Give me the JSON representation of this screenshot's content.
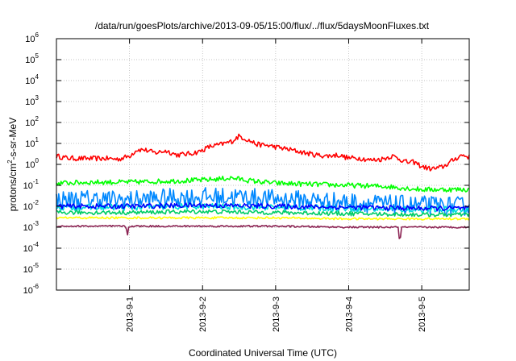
{
  "chart_data": {
    "type": "line",
    "title": "/data/run/goesPlots/archive/2013-09-05/15:00/flux/../flux/5daysMoonFluxes.txt",
    "xlabel": "Coordinated Universal Time (UTC)",
    "ylabel_prefix": "protons/cm",
    "ylabel_sup": "2",
    "ylabel_suffix": "-s-sr-MeV",
    "yscale": "log",
    "ylim": [
      1e-06,
      1000000.0
    ],
    "xlim_days": [
      0,
      5.65
    ],
    "grid": true,
    "y_ticks": [
      {
        "base": "10",
        "exp": "-6",
        "value": -6
      },
      {
        "base": "10",
        "exp": "-5",
        "value": -5
      },
      {
        "base": "10",
        "exp": "-4",
        "value": -4
      },
      {
        "base": "10",
        "exp": "-3",
        "value": -3
      },
      {
        "base": "10",
        "exp": "-2",
        "value": -2
      },
      {
        "base": "10",
        "exp": "-1",
        "value": -1
      },
      {
        "base": "10",
        "exp": "0",
        "value": 0
      },
      {
        "base": "10",
        "exp": "1",
        "value": 1
      },
      {
        "base": "10",
        "exp": "2",
        "value": 2
      },
      {
        "base": "10",
        "exp": "3",
        "value": 3
      },
      {
        "base": "10",
        "exp": "4",
        "value": 4
      },
      {
        "base": "10",
        "exp": "5",
        "value": 5
      },
      {
        "base": "10",
        "exp": "6",
        "value": 6
      }
    ],
    "x_ticks": [
      {
        "label": "2013-9-1",
        "day": 1
      },
      {
        "label": "2013-9-2",
        "day": 2
      },
      {
        "label": "2013-9-3",
        "day": 3
      },
      {
        "label": "2013-9-4",
        "day": 4
      },
      {
        "label": "2013-9-5",
        "day": 5
      }
    ],
    "series": [
      {
        "color": "#ff0000",
        "points": [
          [
            0,
            0.4
          ],
          [
            0.15,
            0.3
          ],
          [
            0.3,
            0.28
          ],
          [
            0.5,
            0.28
          ],
          [
            0.7,
            0.28
          ],
          [
            0.85,
            0.25
          ],
          [
            1.0,
            0.4
          ],
          [
            1.1,
            0.7
          ],
          [
            1.2,
            0.7
          ],
          [
            1.35,
            0.55
          ],
          [
            1.5,
            0.65
          ],
          [
            1.65,
            0.45
          ],
          [
            1.8,
            0.5
          ],
          [
            1.95,
            0.6
          ],
          [
            2.1,
            0.85
          ],
          [
            2.25,
            0.95
          ],
          [
            2.4,
            1.1
          ],
          [
            2.5,
            1.35
          ],
          [
            2.6,
            1.2
          ],
          [
            2.75,
            0.95
          ],
          [
            2.9,
            0.9
          ],
          [
            3.05,
            0.8
          ],
          [
            3.2,
            0.7
          ],
          [
            3.4,
            0.55
          ],
          [
            3.55,
            0.45
          ],
          [
            3.7,
            0.4
          ],
          [
            3.85,
            0.45
          ],
          [
            4.0,
            0.3
          ],
          [
            4.15,
            0.3
          ],
          [
            4.3,
            0.2
          ],
          [
            4.45,
            0.25
          ],
          [
            4.6,
            0.4
          ],
          [
            4.7,
            0.25
          ],
          [
            4.8,
            0.1
          ],
          [
            4.9,
            0.1
          ],
          [
            5.0,
            -0.1
          ],
          [
            5.1,
            -0.2
          ],
          [
            5.2,
            -0.2
          ],
          [
            5.3,
            -0.1
          ],
          [
            5.45,
            0.25
          ],
          [
            5.55,
            0.45
          ],
          [
            5.65,
            0.35
          ]
        ],
        "noise": 0.12
      },
      {
        "color": "#00ff00",
        "points": [
          [
            0,
            -0.9
          ],
          [
            0.5,
            -0.85
          ],
          [
            1.0,
            -0.85
          ],
          [
            1.5,
            -0.8
          ],
          [
            2.0,
            -0.75
          ],
          [
            2.4,
            -0.65
          ],
          [
            2.7,
            -0.8
          ],
          [
            3.0,
            -0.9
          ],
          [
            3.5,
            -0.95
          ],
          [
            4.0,
            -1.0
          ],
          [
            4.5,
            -1.05
          ],
          [
            5.0,
            -1.2
          ],
          [
            5.65,
            -1.2
          ]
        ],
        "noise": 0.12
      },
      {
        "color": "#0088ff",
        "points": [
          [
            0,
            -1.7
          ],
          [
            0.5,
            -1.65
          ],
          [
            1.0,
            -1.7
          ],
          [
            1.5,
            -1.6
          ],
          [
            2.0,
            -1.55
          ],
          [
            2.5,
            -1.55
          ],
          [
            3.0,
            -1.65
          ],
          [
            3.5,
            -1.7
          ],
          [
            4.0,
            -1.8
          ],
          [
            4.5,
            -1.9
          ],
          [
            5.0,
            -1.95
          ],
          [
            5.65,
            -2.0
          ]
        ],
        "noise": 0.45
      },
      {
        "color": "#00dddd",
        "points": [
          [
            0,
            -2.05
          ],
          [
            1.0,
            -2.05
          ],
          [
            2.0,
            -2.0
          ],
          [
            3.0,
            -2.05
          ],
          [
            4.0,
            -2.1
          ],
          [
            5.0,
            -2.15
          ],
          [
            5.65,
            -2.15
          ]
        ],
        "noise": 0.15
      },
      {
        "color": "#0000ff",
        "points": [
          [
            0,
            -2.0
          ],
          [
            1.0,
            -2.0
          ],
          [
            2.0,
            -1.95
          ],
          [
            3.0,
            -2.0
          ],
          [
            4.0,
            -2.05
          ],
          [
            5.0,
            -2.1
          ],
          [
            5.65,
            -2.1
          ]
        ],
        "noise": 0.12
      },
      {
        "color": "#00cc66",
        "points": [
          [
            0,
            -2.3
          ],
          [
            1.0,
            -2.3
          ],
          [
            2.0,
            -2.25
          ],
          [
            3.0,
            -2.3
          ],
          [
            4.0,
            -2.35
          ],
          [
            5.0,
            -2.4
          ],
          [
            5.65,
            -2.4
          ]
        ],
        "noise": 0.1
      },
      {
        "color": "#ffff00",
        "points": [
          [
            0,
            -2.55
          ],
          [
            1.0,
            -2.55
          ],
          [
            2.0,
            -2.55
          ],
          [
            3.0,
            -2.55
          ],
          [
            4.0,
            -2.6
          ],
          [
            5.0,
            -2.6
          ],
          [
            5.65,
            -2.6
          ]
        ],
        "noise": 0.05
      },
      {
        "color": "#8b2252",
        "points": [
          [
            0,
            -2.95
          ],
          [
            0.95,
            -2.95
          ],
          [
            0.97,
            -3.45
          ],
          [
            0.99,
            -2.95
          ],
          [
            2.0,
            -2.95
          ],
          [
            3.0,
            -2.95
          ],
          [
            4.0,
            -3.0
          ],
          [
            4.68,
            -3.0
          ],
          [
            4.7,
            -3.8
          ],
          [
            4.72,
            -3.0
          ],
          [
            5.65,
            -3.0
          ]
        ],
        "noise": 0.04
      }
    ]
  }
}
